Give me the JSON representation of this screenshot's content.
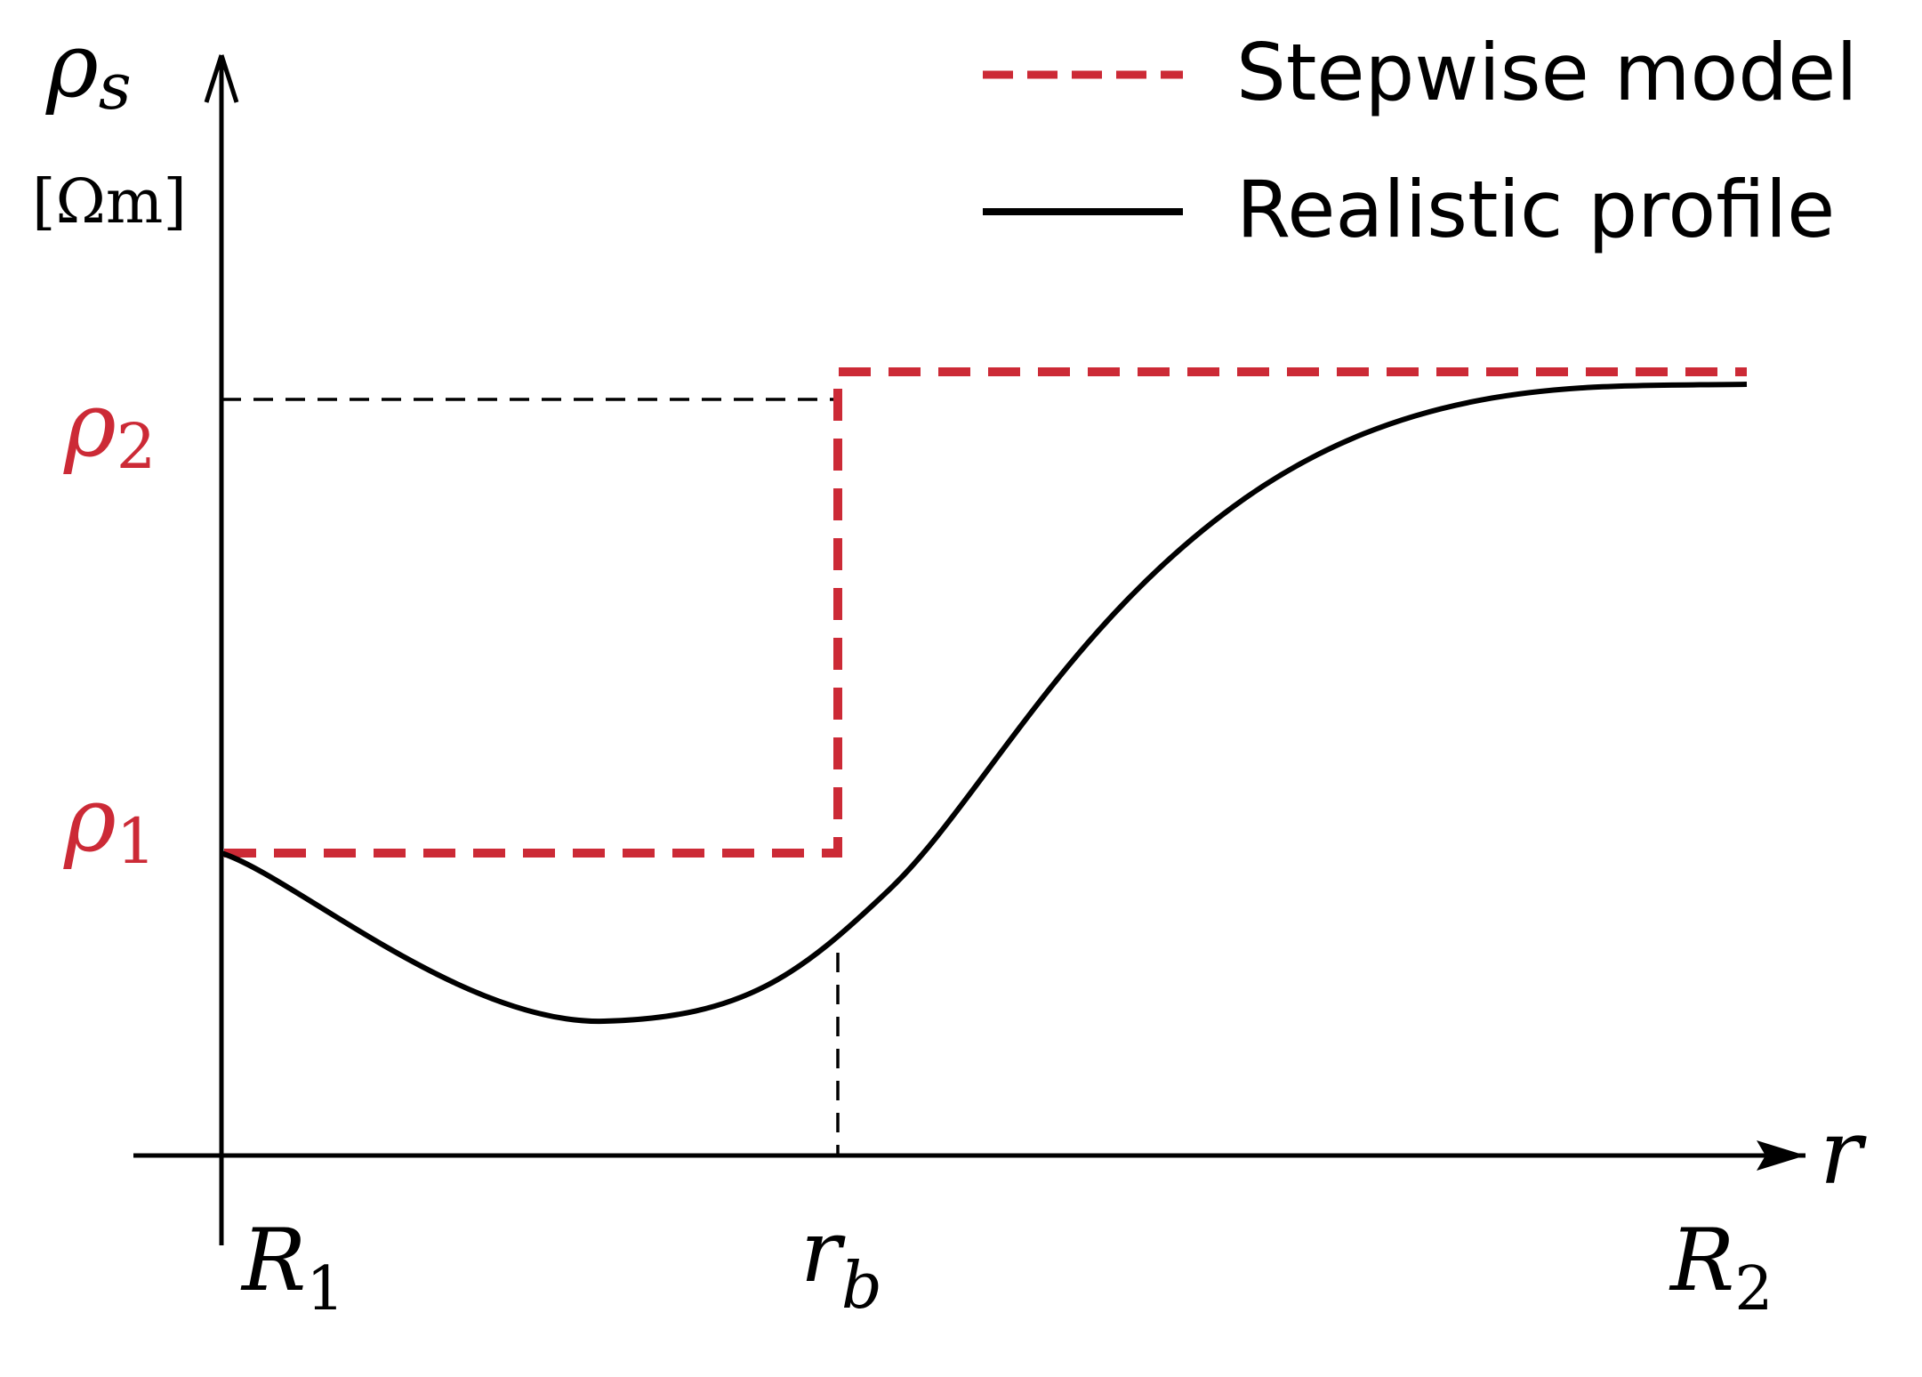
{
  "y_axis": {
    "symbol": "ρ",
    "subscript": "s",
    "unit": "[Ωm]"
  },
  "x_axis": {
    "symbol": "r"
  },
  "y_labels": [
    {
      "symbol": "ρ",
      "subscript": "2"
    },
    {
      "symbol": "ρ",
      "subscript": "1"
    }
  ],
  "x_labels": [
    {
      "symbol": "R",
      "subscript": "1"
    },
    {
      "symbol": "r",
      "subscript": "b"
    },
    {
      "symbol": "R",
      "subscript": "2"
    }
  ],
  "legend": [
    {
      "label": "Stepwise model"
    },
    {
      "label": "Realistic profile"
    }
  ]
}
